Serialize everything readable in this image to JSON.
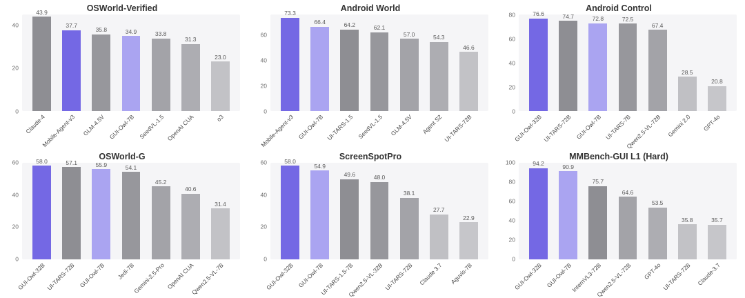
{
  "colors": {
    "highlight_primary": "#7468e4",
    "highlight_secondary": "#aaa4f1",
    "plot_background": "#f5f5f7",
    "page_background": "#ffffff"
  },
  "chart_data": [
    {
      "type": "bar",
      "title": "OSWorld-Verified",
      "categories": [
        "Claude-4",
        "Mobile-Agent-v3",
        "GLM-4.5V",
        "GUI-Owl-7B",
        "SeedVL-1.5",
        "OpenAI CUA",
        "o3"
      ],
      "values": [
        43.9,
        37.7,
        35.8,
        34.9,
        33.8,
        31.3,
        23.0
      ],
      "bar_colors": [
        "#8e8e93",
        "#7468e4",
        "#97979c",
        "#aaa4f1",
        "#a3a3a8",
        "#adadb2",
        "#c2c2c6"
      ],
      "xlabel": "",
      "ylabel": "",
      "ylim": [
        0,
        45
      ],
      "yticks": [
        0,
        20,
        40
      ],
      "grid": false,
      "legend": false
    },
    {
      "type": "bar",
      "title": "Android World",
      "categories": [
        "Mobile-Agent-v3",
        "GUI-Owl-7B",
        "UI-TARS-1.5",
        "SeedVL-1.5",
        "GLM-4.5V",
        "Agent S2",
        "UI-TARS-72B"
      ],
      "values": [
        73.3,
        66.4,
        64.2,
        62.1,
        57.0,
        54.3,
        46.6
      ],
      "bar_colors": [
        "#7468e4",
        "#aaa4f1",
        "#8e8e93",
        "#97979c",
        "#a3a3a8",
        "#adadb2",
        "#c2c2c6"
      ],
      "xlabel": "",
      "ylabel": "",
      "ylim": [
        0,
        76
      ],
      "yticks": [
        0,
        20,
        40,
        60
      ],
      "grid": false,
      "legend": false
    },
    {
      "type": "bar",
      "title": "Android Control",
      "categories": [
        "GUI-Owl-32B",
        "UI-TARS-72B",
        "GUI-Owl-7B",
        "UI-TARS-7B",
        "Qwen2.5-VL-72B",
        "Gemini 2.0",
        "GPT-4o"
      ],
      "values": [
        76.6,
        74.7,
        72.8,
        72.5,
        67.4,
        28.5,
        20.8
      ],
      "bar_colors": [
        "#7468e4",
        "#8e8e93",
        "#aaa4f1",
        "#97979c",
        "#a3a3a8",
        "#c0c0c4",
        "#c6c6ca"
      ],
      "xlabel": "",
      "ylabel": "",
      "ylim": [
        0,
        80
      ],
      "yticks": [
        0,
        20,
        40,
        60,
        80
      ],
      "grid": false,
      "legend": false
    },
    {
      "type": "bar",
      "title": "OSWorld-G",
      "categories": [
        "GUI-Owl-32B",
        "UI-TARS-72B",
        "GUI-Owl-7B",
        "Jedi-7B",
        "Gemini-2.5-Pro",
        "OpenAI CUA",
        "Qwen2.5-VL-7B"
      ],
      "values": [
        58.0,
        57.1,
        55.9,
        54.1,
        45.2,
        40.6,
        31.4
      ],
      "bar_colors": [
        "#7468e4",
        "#8e8e93",
        "#aaa4f1",
        "#97979c",
        "#a3a3a8",
        "#adadb2",
        "#c2c2c6"
      ],
      "xlabel": "",
      "ylabel": "",
      "ylim": [
        0,
        60
      ],
      "yticks": [
        0,
        20,
        40,
        60
      ],
      "grid": false,
      "legend": false
    },
    {
      "type": "bar",
      "title": "ScreenSpotPro",
      "categories": [
        "GUI-Owl-32B",
        "GUI-Owl-7B",
        "UI-TARS-1.5-7B",
        "Qwen2.5-VL-32B",
        "UI-TARS-72B",
        "Claude 3.7",
        "Aguvis-7B"
      ],
      "values": [
        58.0,
        54.9,
        49.6,
        48.0,
        38.1,
        27.7,
        22.9
      ],
      "bar_colors": [
        "#7468e4",
        "#aaa4f1",
        "#8e8e93",
        "#97979c",
        "#a3a3a8",
        "#c0c0c4",
        "#c6c6ca"
      ],
      "xlabel": "",
      "ylabel": "",
      "ylim": [
        0,
        60
      ],
      "yticks": [
        0,
        20,
        40,
        60
      ],
      "grid": false,
      "legend": false
    },
    {
      "type": "bar",
      "title": "MMBench-GUI L1 (Hard)",
      "categories": [
        "GUI-Owl-32B",
        "GUI-Owl-7B",
        "InternVL3-72B",
        "Qwen2.5-VL-72B",
        "GPT-4o",
        "UI-TARS-72B",
        "Claude-3.7"
      ],
      "values": [
        94.2,
        90.9,
        75.7,
        64.6,
        53.5,
        35.8,
        35.7
      ],
      "bar_colors": [
        "#7468e4",
        "#aaa4f1",
        "#8e8e93",
        "#a3a3a8",
        "#adadb2",
        "#c2c2c6",
        "#c6c6ca"
      ],
      "xlabel": "",
      "ylabel": "",
      "ylim": [
        0,
        100
      ],
      "yticks": [
        0,
        20,
        40,
        60,
        80,
        100
      ],
      "grid": false,
      "legend": false
    }
  ]
}
